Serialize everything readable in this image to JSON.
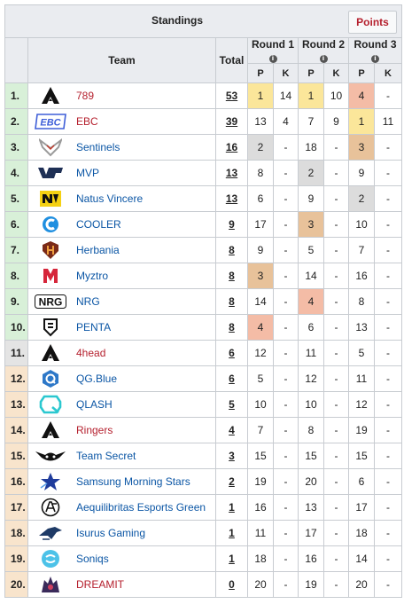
{
  "header": {
    "title": "Standings",
    "points_button": "Points",
    "team_col": "Team",
    "total_col": "Total",
    "rounds": [
      "Round 1",
      "Round 2",
      "Round 3"
    ],
    "p_label": "P",
    "k_label": "K",
    "info_glyph": "i"
  },
  "colors": {
    "rank_top": "#d8f0d8",
    "rank_mid": "#e4e4e4",
    "rank_low": "#f8e4cc",
    "gold": "#fbe69a",
    "silver": "#dcdcdc",
    "bronze": "#e8c29a",
    "fourth": "#f4bca6",
    "link_red": "#b5202e",
    "link_blue": "#0b56a5"
  },
  "rows": [
    {
      "rank": "1.",
      "name": "789",
      "link": "red",
      "logo": "apex-icon",
      "total": "53",
      "r1p": "1",
      "r1k": "14",
      "r2p": "1",
      "r2k": "10",
      "r3p": "4",
      "r3k": "-",
      "h1": "gold",
      "h2": "gold",
      "h3": "fourth",
      "band": "top"
    },
    {
      "rank": "2.",
      "name": "EBC",
      "link": "red",
      "logo": "ebc-icon",
      "total": "39",
      "r1p": "13",
      "r1k": "4",
      "r2p": "7",
      "r2k": "9",
      "r3p": "1",
      "r3k": "11",
      "h1": "",
      "h2": "",
      "h3": "gold",
      "band": "top"
    },
    {
      "rank": "3.",
      "name": "Sentinels",
      "link": "blue",
      "logo": "sentinels-icon",
      "total": "16",
      "r1p": "2",
      "r1k": "-",
      "r2p": "18",
      "r2k": "-",
      "r3p": "3",
      "r3k": "-",
      "h1": "silver",
      "h2": "",
      "h3": "bronze",
      "band": "top"
    },
    {
      "rank": "4.",
      "name": "MVP",
      "link": "blue",
      "logo": "mvp-icon",
      "total": "13",
      "r1p": "8",
      "r1k": "-",
      "r2p": "2",
      "r2k": "-",
      "r3p": "9",
      "r3k": "-",
      "h1": "",
      "h2": "silver",
      "h3": "",
      "band": "top"
    },
    {
      "rank": "5.",
      "name": "Natus Vincere",
      "link": "blue",
      "logo": "navi-icon",
      "total": "13",
      "r1p": "6",
      "r1k": "-",
      "r2p": "9",
      "r2k": "-",
      "r3p": "2",
      "r3k": "-",
      "h1": "",
      "h2": "",
      "h3": "silver",
      "band": "top"
    },
    {
      "rank": "6.",
      "name": "COOLER",
      "link": "blue",
      "logo": "cooler-icon",
      "total": "9",
      "r1p": "17",
      "r1k": "-",
      "r2p": "3",
      "r2k": "-",
      "r3p": "10",
      "r3k": "-",
      "h1": "",
      "h2": "bronze",
      "h3": "",
      "band": "top"
    },
    {
      "rank": "7.",
      "name": "Herbania",
      "link": "blue",
      "logo": "herbania-icon",
      "total": "8",
      "r1p": "9",
      "r1k": "-",
      "r2p": "5",
      "r2k": "-",
      "r3p": "7",
      "r3k": "-",
      "h1": "",
      "h2": "",
      "h3": "",
      "band": "top"
    },
    {
      "rank": "8.",
      "name": "Myztro",
      "link": "blue",
      "logo": "myztro-icon",
      "total": "8",
      "r1p": "3",
      "r1k": "-",
      "r2p": "14",
      "r2k": "-",
      "r3p": "16",
      "r3k": "-",
      "h1": "bronze",
      "h2": "",
      "h3": "",
      "band": "top"
    },
    {
      "rank": "9.",
      "name": "NRG",
      "link": "blue",
      "logo": "nrg-icon",
      "total": "8",
      "r1p": "14",
      "r1k": "-",
      "r2p": "4",
      "r2k": "-",
      "r3p": "8",
      "r3k": "-",
      "h1": "",
      "h2": "fourth",
      "h3": "",
      "band": "top"
    },
    {
      "rank": "10.",
      "name": "PENTA",
      "link": "blue",
      "logo": "penta-icon",
      "total": "8",
      "r1p": "4",
      "r1k": "-",
      "r2p": "6",
      "r2k": "-",
      "r3p": "13",
      "r3k": "-",
      "h1": "fourth",
      "h2": "",
      "h3": "",
      "band": "top"
    },
    {
      "rank": "11.",
      "name": "4head",
      "link": "red",
      "logo": "apex-icon",
      "total": "6",
      "r1p": "12",
      "r1k": "-",
      "r2p": "11",
      "r2k": "-",
      "r3p": "5",
      "r3k": "-",
      "h1": "",
      "h2": "",
      "h3": "",
      "band": "mid"
    },
    {
      "rank": "12.",
      "name": "QG.Blue",
      "link": "blue",
      "logo": "qg-icon",
      "total": "6",
      "r1p": "5",
      "r1k": "-",
      "r2p": "12",
      "r2k": "-",
      "r3p": "11",
      "r3k": "-",
      "h1": "",
      "h2": "",
      "h3": "",
      "band": "low"
    },
    {
      "rank": "13.",
      "name": "QLASH",
      "link": "blue",
      "logo": "qlash-icon",
      "total": "5",
      "r1p": "10",
      "r1k": "-",
      "r2p": "10",
      "r2k": "-",
      "r3p": "12",
      "r3k": "-",
      "h1": "",
      "h2": "",
      "h3": "",
      "band": "low"
    },
    {
      "rank": "14.",
      "name": "Ringers",
      "link": "red",
      "logo": "apex-icon",
      "total": "4",
      "r1p": "7",
      "r1k": "-",
      "r2p": "8",
      "r2k": "-",
      "r3p": "19",
      "r3k": "-",
      "h1": "",
      "h2": "",
      "h3": "",
      "band": "low"
    },
    {
      "rank": "15.",
      "name": "Team Secret",
      "link": "blue",
      "logo": "secret-icon",
      "total": "3",
      "r1p": "15",
      "r1k": "-",
      "r2p": "15",
      "r2k": "-",
      "r3p": "15",
      "r3k": "-",
      "h1": "",
      "h2": "",
      "h3": "",
      "band": "low"
    },
    {
      "rank": "16.",
      "name": "Samsung Morning Stars",
      "link": "blue",
      "logo": "samsung-stars-icon",
      "total": "2",
      "r1p": "19",
      "r1k": "-",
      "r2p": "20",
      "r2k": "-",
      "r3p": "6",
      "r3k": "-",
      "h1": "",
      "h2": "",
      "h3": "",
      "band": "low"
    },
    {
      "rank": "17.",
      "name": "Aequilibritas Esports Green",
      "link": "blue",
      "logo": "aequilibritas-icon",
      "total": "1",
      "r1p": "16",
      "r1k": "-",
      "r2p": "13",
      "r2k": "-",
      "r3p": "17",
      "r3k": "-",
      "h1": "",
      "h2": "",
      "h3": "",
      "band": "low"
    },
    {
      "rank": "18.",
      "name": "Isurus Gaming",
      "link": "blue",
      "logo": "isurus-icon",
      "total": "1",
      "r1p": "11",
      "r1k": "-",
      "r2p": "17",
      "r2k": "-",
      "r3p": "18",
      "r3k": "-",
      "h1": "",
      "h2": "",
      "h3": "",
      "band": "low"
    },
    {
      "rank": "19.",
      "name": "Soniqs",
      "link": "blue",
      "logo": "soniqs-icon",
      "total": "1",
      "r1p": "18",
      "r1k": "-",
      "r2p": "16",
      "r2k": "-",
      "r3p": "14",
      "r3k": "-",
      "h1": "",
      "h2": "",
      "h3": "",
      "band": "low"
    },
    {
      "rank": "20.",
      "name": "DREAMIT",
      "link": "red",
      "logo": "dreamit-icon",
      "total": "0",
      "r1p": "20",
      "r1k": "-",
      "r2p": "19",
      "r2k": "-",
      "r3p": "20",
      "r3k": "-",
      "h1": "",
      "h2": "",
      "h3": "",
      "band": "low"
    }
  ]
}
